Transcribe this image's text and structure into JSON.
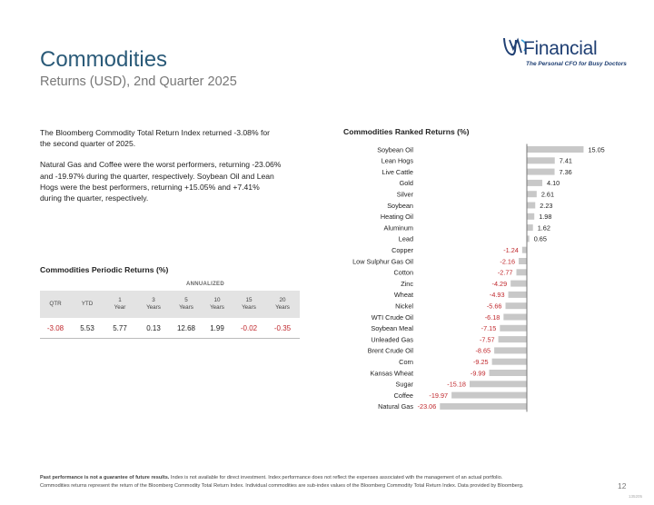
{
  "header": {
    "title": "Commodities",
    "subtitle": "Returns (USD), 2nd Quarter 2025"
  },
  "logo": {
    "name": "Financial",
    "tagline": "The Personal CFO for Busy Doctors"
  },
  "description": {
    "p1": "The Bloomberg Commodity Total Return Index returned -3.08% for the second quarter of 2025.",
    "p2": "Natural Gas and Coffee were the worst performers, returning -23.06% and -19.97% during the quarter, respectively. Soybean Oil and Lean Hogs were the best performers, returning +15.05% and +7.41% during the quarter, respectively."
  },
  "periodic_returns": {
    "title": "Commodities Periodic Returns (%)",
    "annualized_label": "ANNUALIZED",
    "headers": [
      {
        "l1": "QTR",
        "l2": ""
      },
      {
        "l1": "YTD",
        "l2": ""
      },
      {
        "l1": "1",
        "l2": "Year"
      },
      {
        "l1": "3",
        "l2": "Years"
      },
      {
        "l1": "5",
        "l2": "Years"
      },
      {
        "l1": "10",
        "l2": "Years"
      },
      {
        "l1": "15",
        "l2": "Years"
      },
      {
        "l1": "20",
        "l2": "Years"
      }
    ],
    "values": [
      "-3.08",
      "5.53",
      "5.77",
      "0.13",
      "12.68",
      "1.99",
      "-0.02",
      "-0.35"
    ]
  },
  "chart_data": {
    "type": "bar",
    "orientation": "horizontal",
    "title": "Commodities Ranked Returns (%)",
    "categories": [
      "Soybean Oil",
      "Lean Hogs",
      "Live Cattle",
      "Gold",
      "Silver",
      "Soybean",
      "Heating Oil",
      "Aluminum",
      "Lead",
      "Copper",
      "Low Sulphur Gas Oil",
      "Cotton",
      "Zinc",
      "Wheat",
      "Nickel",
      "WTI Crude Oil",
      "Soybean Meal",
      "Unleaded Gas",
      "Brent Crude Oil",
      "Corn",
      "Kansas Wheat",
      "Sugar",
      "Coffee",
      "Natural Gas"
    ],
    "values": [
      15.05,
      7.41,
      7.36,
      4.1,
      2.61,
      2.23,
      1.98,
      1.62,
      0.65,
      -1.24,
      -2.16,
      -2.77,
      -4.29,
      -4.93,
      -5.66,
      -6.18,
      -7.15,
      -7.57,
      -8.65,
      -9.25,
      -9.99,
      -15.18,
      -19.97,
      -23.06
    ],
    "labels": [
      "15.05",
      "7.41",
      "7.36",
      "4.10",
      "2.61",
      "2.23",
      "1.98",
      "1.62",
      "0.65",
      "-1.24",
      "-2.16",
      "-2.77",
      "-4.29",
      "-4.93",
      "-5.66",
      "-6.18",
      "-7.15",
      "-7.57",
      "-8.65",
      "-9.25",
      "-9.99",
      "-15.18",
      "-19.97",
      "-23.06"
    ],
    "xlim": [
      -25,
      16
    ],
    "colors": {
      "bar": "#c8c8c8",
      "axis": "#777777",
      "positive_label": "#222222",
      "negative_label": "#c0282d"
    }
  },
  "footer": {
    "line1_bold": "Past performance is not a guarantee of future results.",
    "line1_rest": " Index is not available for direct investment. Index performance does not reflect the expenses associated with the management of an actual portfolio.",
    "line2": "Commodities returns represent the return of the Bloomberg Commodity Total Return Index. Individual commodities are sub-index values of the Bloomberg Commodity Total Return Index. Data provided by Bloomberg.",
    "page_number": "12",
    "code": "135205"
  },
  "colors": {
    "title": "#2a5a78",
    "negative": "#c0282d",
    "logo": "#1f3f73",
    "logo_accent": "#3aa0d8"
  }
}
